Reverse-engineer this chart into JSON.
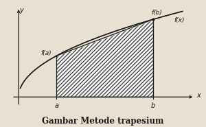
{
  "title": "Gambar Metode trapesium",
  "title_fontsize": 8.5,
  "background_color": "#e8e0d0",
  "a": 0.22,
  "b": 0.78,
  "curve_color": "#1a1a1a",
  "hatch_color": "#444444",
  "line_color": "#1a1a1a",
  "xlabel": "x",
  "ylabel": "y",
  "fa_label": "f(a)",
  "fb_label": "f(b)",
  "fx_label": "f(x)",
  "a_label": "a",
  "b_label": "b",
  "figwidth": 3.0,
  "figheight": 1.85,
  "dpi": 100
}
